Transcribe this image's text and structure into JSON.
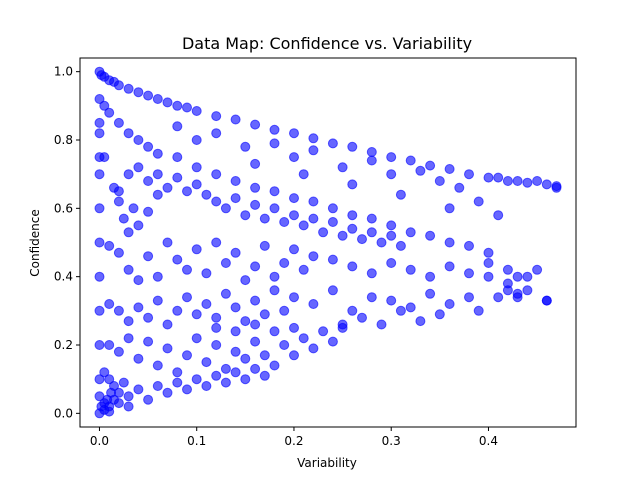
{
  "chart_data": {
    "type": "scatter",
    "title": "Data Map: Confidence vs. Variability",
    "xlabel": "Variability",
    "ylabel": "Confidence",
    "xlim": [
      -0.02,
      0.49
    ],
    "ylim": [
      -0.04,
      1.04
    ],
    "xticks": [
      0.0,
      0.1,
      0.2,
      0.3,
      0.4
    ],
    "yticks": [
      0.0,
      0.2,
      0.4,
      0.6,
      0.8,
      1.0
    ],
    "xtick_labels": [
      "0.0",
      "0.1",
      "0.2",
      "0.3",
      "0.4"
    ],
    "ytick_labels": [
      "0.0",
      "0.2",
      "0.4",
      "0.6",
      "0.8",
      "1.0"
    ],
    "grid": false,
    "legend": "none",
    "marker_color": "#0000ff",
    "marker_alpha": 0.6,
    "series": [
      {
        "points": [
          [
            0.0,
            1.0
          ],
          [
            0.002,
            0.99
          ],
          [
            0.005,
            0.985
          ],
          [
            0.01,
            0.975
          ],
          [
            0.015,
            0.97
          ],
          [
            0.02,
            0.96
          ],
          [
            0.03,
            0.95
          ],
          [
            0.04,
            0.94
          ],
          [
            0.05,
            0.93
          ],
          [
            0.06,
            0.92
          ],
          [
            0.07,
            0.91
          ],
          [
            0.08,
            0.9
          ],
          [
            0.09,
            0.895
          ],
          [
            0.1,
            0.885
          ],
          [
            0.12,
            0.87
          ],
          [
            0.14,
            0.86
          ],
          [
            0.16,
            0.845
          ],
          [
            0.18,
            0.83
          ],
          [
            0.2,
            0.82
          ],
          [
            0.22,
            0.805
          ],
          [
            0.24,
            0.79
          ],
          [
            0.26,
            0.78
          ],
          [
            0.28,
            0.765
          ],
          [
            0.3,
            0.75
          ],
          [
            0.32,
            0.74
          ],
          [
            0.34,
            0.725
          ],
          [
            0.36,
            0.715
          ],
          [
            0.38,
            0.7
          ],
          [
            0.4,
            0.69
          ],
          [
            0.42,
            0.68
          ],
          [
            0.44,
            0.675
          ],
          [
            0.46,
            0.67
          ],
          [
            0.47,
            0.665
          ],
          [
            0.45,
            0.68
          ],
          [
            0.43,
            0.68
          ],
          [
            0.41,
            0.69
          ],
          [
            0.005,
            0.9
          ],
          [
            0.01,
            0.88
          ],
          [
            0.02,
            0.85
          ],
          [
            0.03,
            0.82
          ],
          [
            0.04,
            0.8
          ],
          [
            0.05,
            0.78
          ],
          [
            0.06,
            0.76
          ],
          [
            0.08,
            0.75
          ],
          [
            0.1,
            0.72
          ],
          [
            0.12,
            0.7
          ],
          [
            0.14,
            0.68
          ],
          [
            0.16,
            0.66
          ],
          [
            0.18,
            0.65
          ],
          [
            0.2,
            0.63
          ],
          [
            0.22,
            0.62
          ],
          [
            0.24,
            0.6
          ],
          [
            0.26,
            0.58
          ],
          [
            0.28,
            0.57
          ],
          [
            0.3,
            0.55
          ],
          [
            0.32,
            0.53
          ],
          [
            0.34,
            0.52
          ],
          [
            0.36,
            0.5
          ],
          [
            0.38,
            0.49
          ],
          [
            0.4,
            0.47
          ],
          [
            0.42,
            0.42
          ],
          [
            0.43,
            0.4
          ],
          [
            0.44,
            0.36
          ],
          [
            0.43,
            0.34
          ],
          [
            0.42,
            0.38
          ],
          [
            0.4,
            0.44
          ],
          [
            0.1,
            0.8
          ],
          [
            0.15,
            0.78
          ],
          [
            0.2,
            0.75
          ],
          [
            0.25,
            0.72
          ],
          [
            0.3,
            0.7
          ],
          [
            0.35,
            0.68
          ],
          [
            0.08,
            0.84
          ],
          [
            0.12,
            0.82
          ],
          [
            0.18,
            0.79
          ],
          [
            0.22,
            0.77
          ],
          [
            0.28,
            0.74
          ],
          [
            0.33,
            0.71
          ],
          [
            0.37,
            0.66
          ],
          [
            0.39,
            0.62
          ],
          [
            0.41,
            0.58
          ],
          [
            0.36,
            0.6
          ],
          [
            0.31,
            0.64
          ],
          [
            0.26,
            0.67
          ],
          [
            0.21,
            0.7
          ],
          [
            0.16,
            0.73
          ],
          [
            0.0,
            0.92
          ],
          [
            0.0,
            0.85
          ],
          [
            0.0,
            0.82
          ],
          [
            0.0,
            0.75
          ],
          [
            0.0,
            0.7
          ],
          [
            0.0,
            0.6
          ],
          [
            0.0,
            0.5
          ],
          [
            0.0,
            0.4
          ],
          [
            0.0,
            0.3
          ],
          [
            0.0,
            0.2
          ],
          [
            0.0,
            0.1
          ],
          [
            0.0,
            0.05
          ],
          [
            0.0,
            0.0
          ],
          [
            0.005,
            0.75
          ],
          [
            0.01,
            0.49
          ],
          [
            0.015,
            0.66
          ],
          [
            0.02,
            0.62
          ],
          [
            0.025,
            0.57
          ],
          [
            0.03,
            0.53
          ],
          [
            0.035,
            0.6
          ],
          [
            0.04,
            0.55
          ],
          [
            0.05,
            0.59
          ],
          [
            0.06,
            0.64
          ],
          [
            0.02,
            0.47
          ],
          [
            0.03,
            0.42
          ],
          [
            0.04,
            0.39
          ],
          [
            0.05,
            0.46
          ],
          [
            0.06,
            0.4
          ],
          [
            0.07,
            0.5
          ],
          [
            0.08,
            0.45
          ],
          [
            0.09,
            0.42
          ],
          [
            0.1,
            0.48
          ],
          [
            0.11,
            0.41
          ],
          [
            0.12,
            0.5
          ],
          [
            0.13,
            0.44
          ],
          [
            0.14,
            0.47
          ],
          [
            0.15,
            0.39
          ],
          [
            0.16,
            0.43
          ],
          [
            0.17,
            0.49
          ],
          [
            0.18,
            0.4
          ],
          [
            0.19,
            0.44
          ],
          [
            0.2,
            0.48
          ],
          [
            0.21,
            0.42
          ],
          [
            0.22,
            0.46
          ],
          [
            0.24,
            0.45
          ],
          [
            0.26,
            0.43
          ],
          [
            0.28,
            0.41
          ],
          [
            0.3,
            0.44
          ],
          [
            0.32,
            0.42
          ],
          [
            0.34,
            0.4
          ],
          [
            0.36,
            0.43
          ],
          [
            0.38,
            0.41
          ],
          [
            0.4,
            0.4
          ],
          [
            0.01,
            0.32
          ],
          [
            0.02,
            0.3
          ],
          [
            0.03,
            0.27
          ],
          [
            0.04,
            0.31
          ],
          [
            0.05,
            0.28
          ],
          [
            0.06,
            0.33
          ],
          [
            0.07,
            0.26
          ],
          [
            0.08,
            0.3
          ],
          [
            0.09,
            0.34
          ],
          [
            0.1,
            0.29
          ],
          [
            0.11,
            0.32
          ],
          [
            0.12,
            0.28
          ],
          [
            0.13,
            0.35
          ],
          [
            0.14,
            0.31
          ],
          [
            0.15,
            0.27
          ],
          [
            0.16,
            0.33
          ],
          [
            0.17,
            0.29
          ],
          [
            0.18,
            0.36
          ],
          [
            0.19,
            0.3
          ],
          [
            0.2,
            0.34
          ],
          [
            0.22,
            0.32
          ],
          [
            0.24,
            0.36
          ],
          [
            0.26,
            0.3
          ],
          [
            0.28,
            0.34
          ],
          [
            0.3,
            0.33
          ],
          [
            0.32,
            0.31
          ],
          [
            0.34,
            0.35
          ],
          [
            0.36,
            0.32
          ],
          [
            0.38,
            0.34
          ],
          [
            0.39,
            0.3
          ],
          [
            0.41,
            0.34
          ],
          [
            0.43,
            0.35
          ],
          [
            0.46,
            0.33
          ],
          [
            0.42,
            0.36
          ],
          [
            0.35,
            0.29
          ],
          [
            0.33,
            0.27
          ],
          [
            0.31,
            0.3
          ],
          [
            0.29,
            0.26
          ],
          [
            0.27,
            0.28
          ],
          [
            0.25,
            0.25
          ],
          [
            0.01,
            0.2
          ],
          [
            0.02,
            0.18
          ],
          [
            0.03,
            0.22
          ],
          [
            0.04,
            0.16
          ],
          [
            0.05,
            0.21
          ],
          [
            0.06,
            0.14
          ],
          [
            0.07,
            0.19
          ],
          [
            0.08,
            0.12
          ],
          [
            0.09,
            0.17
          ],
          [
            0.1,
            0.22
          ],
          [
            0.11,
            0.15
          ],
          [
            0.12,
            0.2
          ],
          [
            0.13,
            0.13
          ],
          [
            0.14,
            0.18
          ],
          [
            0.15,
            0.16
          ],
          [
            0.16,
            0.21
          ],
          [
            0.17,
            0.17
          ],
          [
            0.18,
            0.14
          ],
          [
            0.19,
            0.2
          ],
          [
            0.2,
            0.17
          ],
          [
            0.21,
            0.22
          ],
          [
            0.22,
            0.19
          ],
          [
            0.23,
            0.24
          ],
          [
            0.24,
            0.21
          ],
          [
            0.25,
            0.26
          ],
          [
            0.2,
            0.25
          ],
          [
            0.18,
            0.24
          ],
          [
            0.16,
            0.26
          ],
          [
            0.14,
            0.24
          ],
          [
            0.12,
            0.25
          ],
          [
            0.005,
            0.12
          ],
          [
            0.01,
            0.1
          ],
          [
            0.015,
            0.08
          ],
          [
            0.02,
            0.06
          ],
          [
            0.025,
            0.09
          ],
          [
            0.03,
            0.05
          ],
          [
            0.04,
            0.07
          ],
          [
            0.05,
            0.04
          ],
          [
            0.06,
            0.08
          ],
          [
            0.07,
            0.06
          ],
          [
            0.08,
            0.09
          ],
          [
            0.09,
            0.07
          ],
          [
            0.1,
            0.1
          ],
          [
            0.11,
            0.08
          ],
          [
            0.12,
            0.11
          ],
          [
            0.13,
            0.09
          ],
          [
            0.14,
            0.12
          ],
          [
            0.15,
            0.1
          ],
          [
            0.16,
            0.13
          ],
          [
            0.17,
            0.11
          ],
          [
            0.005,
            0.03
          ],
          [
            0.01,
            0.02
          ],
          [
            0.015,
            0.04
          ],
          [
            0.02,
            0.03
          ],
          [
            0.03,
            0.02
          ],
          [
            0.005,
            0.01
          ],
          [
            0.01,
            0.005
          ],
          [
            0.002,
            0.02
          ],
          [
            0.008,
            0.04
          ],
          [
            0.012,
            0.06
          ],
          [
            0.02,
            0.65
          ],
          [
            0.03,
            0.7
          ],
          [
            0.04,
            0.72
          ],
          [
            0.05,
            0.68
          ],
          [
            0.06,
            0.7
          ],
          [
            0.07,
            0.66
          ],
          [
            0.08,
            0.69
          ],
          [
            0.09,
            0.65
          ],
          [
            0.1,
            0.67
          ],
          [
            0.11,
            0.64
          ],
          [
            0.12,
            0.62
          ],
          [
            0.13,
            0.6
          ],
          [
            0.14,
            0.63
          ],
          [
            0.15,
            0.58
          ],
          [
            0.16,
            0.61
          ],
          [
            0.17,
            0.57
          ],
          [
            0.18,
            0.6
          ],
          [
            0.19,
            0.56
          ],
          [
            0.2,
            0.58
          ],
          [
            0.21,
            0.55
          ],
          [
            0.22,
            0.57
          ],
          [
            0.23,
            0.53
          ],
          [
            0.24,
            0.56
          ],
          [
            0.25,
            0.52
          ],
          [
            0.26,
            0.54
          ],
          [
            0.27,
            0.51
          ],
          [
            0.28,
            0.53
          ],
          [
            0.29,
            0.5
          ],
          [
            0.3,
            0.52
          ],
          [
            0.31,
            0.49
          ],
          [
            0.46,
            0.33
          ],
          [
            0.44,
            0.4
          ],
          [
            0.45,
            0.42
          ],
          [
            0.47,
            0.66
          ]
        ]
      }
    ]
  }
}
